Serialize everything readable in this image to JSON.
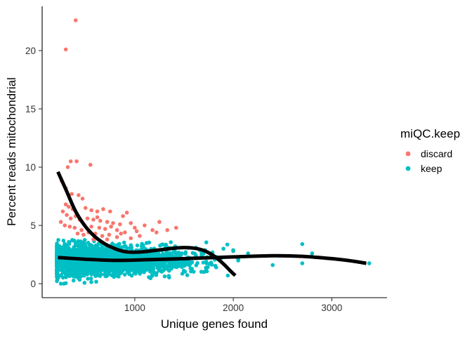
{
  "chart_data": {
    "type": "scatter",
    "xlabel": "Unique genes found",
    "ylabel": "Percent reads mitochondrial",
    "xlim": [
      60,
      3560
    ],
    "ylim": [
      -1.2,
      23.8
    ],
    "x_ticks": [
      1000,
      2000,
      3000
    ],
    "x_tick_labels": [
      "1000",
      "2000",
      "3000"
    ],
    "y_ticks": [
      0,
      5,
      10,
      15,
      20
    ],
    "y_tick_labels": [
      "0",
      "5",
      "10",
      "15",
      "20"
    ],
    "grid": false,
    "legend": {
      "title": "miQC.keep",
      "position": "right",
      "entries": [
        {
          "label": "discard",
          "color": "#F8766D"
        },
        {
          "label": "keep",
          "color": "#00BFC4"
        }
      ]
    },
    "series": [
      {
        "name": "discard",
        "color": "#F8766D",
        "points": [
          [
            400,
            22.6
          ],
          [
            300,
            20.1
          ],
          [
            350,
            10.5
          ],
          [
            410,
            10.5
          ],
          [
            550,
            10.2
          ],
          [
            320,
            10.0
          ],
          [
            260,
            8.8
          ],
          [
            300,
            8.2
          ],
          [
            360,
            7.7
          ],
          [
            430,
            7.6
          ],
          [
            470,
            7.3
          ],
          [
            300,
            6.8
          ],
          [
            330,
            6.6
          ],
          [
            370,
            6.4
          ],
          [
            500,
            6.5
          ],
          [
            560,
            6.3
          ],
          [
            620,
            6.2
          ],
          [
            680,
            6.4
          ],
          [
            750,
            6.2
          ],
          [
            880,
            5.8
          ],
          [
            920,
            6.1
          ],
          [
            270,
            6.2
          ],
          [
            310,
            5.9
          ],
          [
            350,
            5.6
          ],
          [
            400,
            5.8
          ],
          [
            440,
            5.5
          ],
          [
            520,
            5.6
          ],
          [
            580,
            5.5
          ],
          [
            650,
            5.4
          ],
          [
            720,
            5.3
          ],
          [
            780,
            5.2
          ],
          [
            850,
            5.1
          ],
          [
            960,
            5.2
          ],
          [
            1100,
            5.0
          ],
          [
            1250,
            5.3
          ],
          [
            1420,
            4.8
          ],
          [
            1330,
            4.6
          ],
          [
            1180,
            4.6
          ],
          [
            1020,
            4.5
          ],
          [
            900,
            4.4
          ],
          [
            290,
            5.0
          ],
          [
            340,
            4.9
          ],
          [
            390,
            4.8
          ],
          [
            460,
            4.6
          ],
          [
            530,
            4.4
          ],
          [
            600,
            4.3
          ],
          [
            670,
            4.1
          ],
          [
            740,
            4.2
          ],
          [
            820,
            4.0
          ],
          [
            960,
            3.9
          ],
          [
            1050,
            4.1
          ],
          [
            640,
            4.8
          ],
          [
            700,
            4.7
          ],
          [
            760,
            4.9
          ],
          [
            820,
            4.6
          ],
          [
            1000,
            4.8
          ],
          [
            560,
            4.9
          ],
          [
            480,
            4.2
          ],
          [
            420,
            4.3
          ],
          [
            250,
            5.3
          ],
          [
            1220,
            4.4
          ],
          [
            860,
            4.3
          ],
          [
            720,
            3.8
          ],
          [
            580,
            3.8
          ],
          [
            620,
            5.7
          ]
        ]
      },
      {
        "name": "keep",
        "color": "#00BFC4",
        "points": []
      }
    ],
    "fits": [
      {
        "color": "#000000",
        "points": [
          [
            220,
            9.6
          ],
          [
            300,
            8.1
          ],
          [
            400,
            6.2
          ],
          [
            500,
            4.9
          ],
          [
            600,
            4.0
          ],
          [
            700,
            3.4
          ],
          [
            800,
            3.0
          ],
          [
            900,
            2.75
          ],
          [
            1000,
            2.7
          ],
          [
            1100,
            2.75
          ],
          [
            1200,
            2.85
          ],
          [
            1300,
            2.95
          ],
          [
            1400,
            3.05
          ],
          [
            1500,
            3.1
          ],
          [
            1600,
            3.05
          ],
          [
            1700,
            2.85
          ],
          [
            1800,
            2.4
          ],
          [
            1900,
            1.7
          ],
          [
            1970,
            1.1
          ],
          [
            2020,
            0.7
          ]
        ]
      },
      {
        "color": "#000000",
        "points": [
          [
            220,
            2.25
          ],
          [
            500,
            2.1
          ],
          [
            800,
            2.0
          ],
          [
            1100,
            2.05
          ],
          [
            1500,
            2.15
          ],
          [
            2000,
            2.3
          ],
          [
            2400,
            2.4
          ],
          [
            2700,
            2.35
          ],
          [
            3000,
            2.15
          ],
          [
            3200,
            1.95
          ],
          [
            3350,
            1.75
          ]
        ]
      }
    ]
  }
}
